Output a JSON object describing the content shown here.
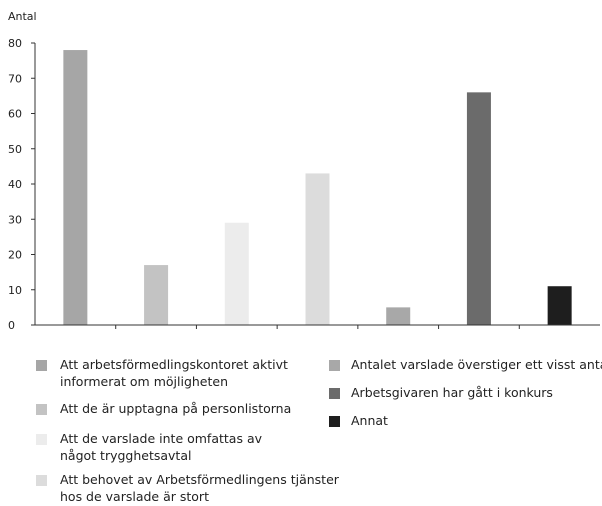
{
  "chart_data": {
    "type": "bar",
    "ylabel": "Antal",
    "ylim": [
      0,
      80
    ],
    "yticks": [
      0,
      10,
      20,
      30,
      40,
      50,
      60,
      70,
      80
    ],
    "grid": false,
    "legend_position": "bottom",
    "categories": [
      [
        "Att arbetsförmedlingskontoret aktivt",
        "informerat om möjligheten"
      ],
      [
        "Att de är upptagna på personlistorna"
      ],
      [
        "Att de varslade inte omfattas av",
        "något trygghetsavtal"
      ],
      [
        "Att behovet av Arbetsförmedlingens tjänster",
        "hos de varslade är stort"
      ],
      [
        "Antalet varslade överstiger ett visst antal"
      ],
      [
        "Arbetsgivaren har gått i konkurs"
      ],
      [
        "Annat"
      ]
    ],
    "values": [
      78,
      17,
      29,
      43,
      5,
      66,
      11
    ],
    "colors": [
      "#a6a6a6",
      "#c3c3c3",
      "#ececec",
      "#dcdcdc",
      "#a8a8a8",
      "#6b6b6b",
      "#1e1e1e"
    ]
  }
}
